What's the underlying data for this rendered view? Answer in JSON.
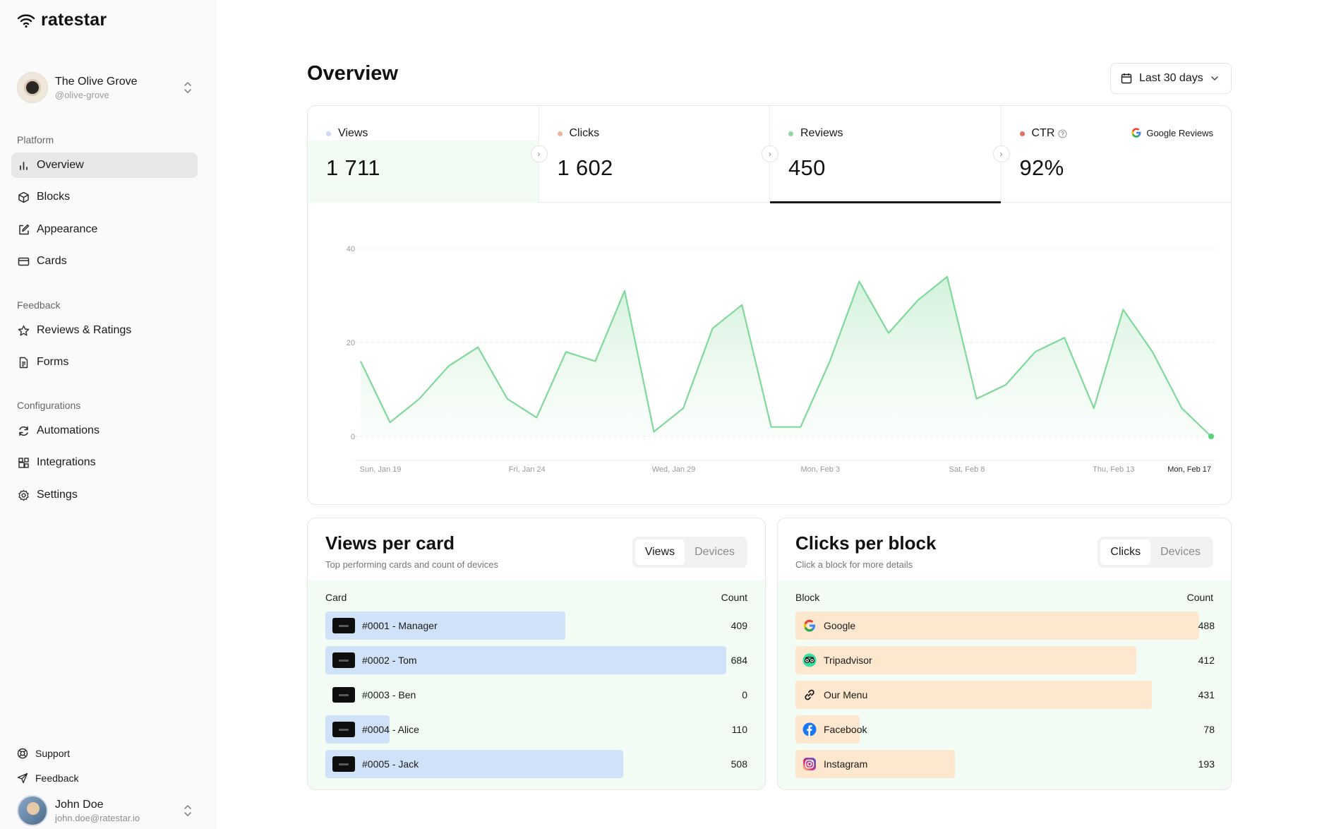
{
  "app": {
    "name": "ratestar"
  },
  "org": {
    "name": "The Olive Grove",
    "handle": "@olive-grove"
  },
  "sidebar": {
    "sections": [
      {
        "title": "Platform"
      },
      {
        "title": "Feedback"
      },
      {
        "title": "Configurations"
      }
    ],
    "items": [
      {
        "label": "Overview",
        "icon": "bar-chart-icon"
      },
      {
        "label": "Blocks",
        "icon": "box-icon"
      },
      {
        "label": "Appearance",
        "icon": "edit-icon"
      },
      {
        "label": "Cards",
        "icon": "card-icon"
      },
      {
        "label": "Reviews & Ratings",
        "icon": "star-icon"
      },
      {
        "label": "Forms",
        "icon": "file-icon"
      },
      {
        "label": "Automations",
        "icon": "refresh-icon"
      },
      {
        "label": "Integrations",
        "icon": "integrations-icon"
      },
      {
        "label": "Settings",
        "icon": "gear-icon"
      }
    ],
    "footer": [
      {
        "label": "Support",
        "icon": "lifebuoy-icon"
      },
      {
        "label": "Feedback",
        "icon": "send-icon"
      }
    ]
  },
  "user": {
    "name": "John Doe",
    "email": "john.doe@ratestar.io"
  },
  "page": {
    "title": "Overview",
    "date_range": "Last 30 days"
  },
  "stats": [
    {
      "label": "Views",
      "value": "1 711",
      "dot": "#c9dcf3"
    },
    {
      "label": "Clicks",
      "value": "1 602",
      "dot": "#e8b89a"
    },
    {
      "label": "Reviews",
      "value": "450",
      "dot": "#8fd6a0"
    },
    {
      "label": "CTR",
      "value": "92%",
      "dot": "#e0705f"
    }
  ],
  "google_reviews_label": "Google Reviews",
  "chart_data": {
    "type": "area",
    "ylim": [
      0,
      40
    ],
    "yticks": [
      "0",
      "20",
      "40"
    ],
    "xtick_labels": [
      "Sun, Jan 19",
      "Fri, Jan 24",
      "Wed, Jan 29",
      "Mon, Feb 3",
      "Sat, Feb 8",
      "Thu, Feb 13",
      "Mon, Feb 17"
    ],
    "x": [
      "Jan 19",
      "Jan 20",
      "Jan 21",
      "Jan 22",
      "Jan 23",
      "Jan 24",
      "Jan 25",
      "Jan 26",
      "Jan 27",
      "Jan 28",
      "Jan 29",
      "Jan 30",
      "Jan 31",
      "Feb 1",
      "Feb 2",
      "Feb 3",
      "Feb 4",
      "Feb 5",
      "Feb 6",
      "Feb 7",
      "Feb 8",
      "Feb 9",
      "Feb 10",
      "Feb 11",
      "Feb 12",
      "Feb 13",
      "Feb 14",
      "Feb 15",
      "Feb 16",
      "Feb 17"
    ],
    "series": [
      {
        "values": [
          16,
          3,
          8,
          15,
          19,
          8,
          4,
          18,
          16,
          31,
          1,
          6,
          23,
          28,
          2,
          2,
          16,
          33,
          22,
          29,
          34,
          8,
          11,
          18,
          21,
          6,
          27,
          18,
          6,
          0
        ],
        "color": "#7fd99a"
      }
    ],
    "grid": true
  },
  "views_per_card": {
    "title": "Views per card",
    "subtitle": "Top performing cards and count of devices",
    "tabs": [
      "Views",
      "Devices"
    ],
    "col_left": "Card",
    "col_right": "Count",
    "max": 684,
    "rows": [
      {
        "label": "#0001 - Manager",
        "count": 409
      },
      {
        "label": "#0002 - Tom",
        "count": 684
      },
      {
        "label": "#0003 - Ben",
        "count": 0
      },
      {
        "label": "#0004 - Alice",
        "count": 110
      },
      {
        "label": "#0005 - Jack",
        "count": 508
      }
    ]
  },
  "clicks_per_block": {
    "title": "Clicks per block",
    "subtitle": "Click a block for more details",
    "tabs": [
      "Clicks",
      "Devices"
    ],
    "col_left": "Block",
    "col_right": "Count",
    "max": 488,
    "rows": [
      {
        "label": "Google",
        "count": 488,
        "icon": "google-icon"
      },
      {
        "label": "Tripadvisor",
        "count": 412,
        "icon": "tripadvisor-icon"
      },
      {
        "label": "Our Menu",
        "count": 431,
        "icon": "link-icon"
      },
      {
        "label": "Facebook",
        "count": 78,
        "icon": "facebook-icon"
      },
      {
        "label": "Instagram",
        "count": 193,
        "icon": "instagram-icon"
      }
    ]
  }
}
